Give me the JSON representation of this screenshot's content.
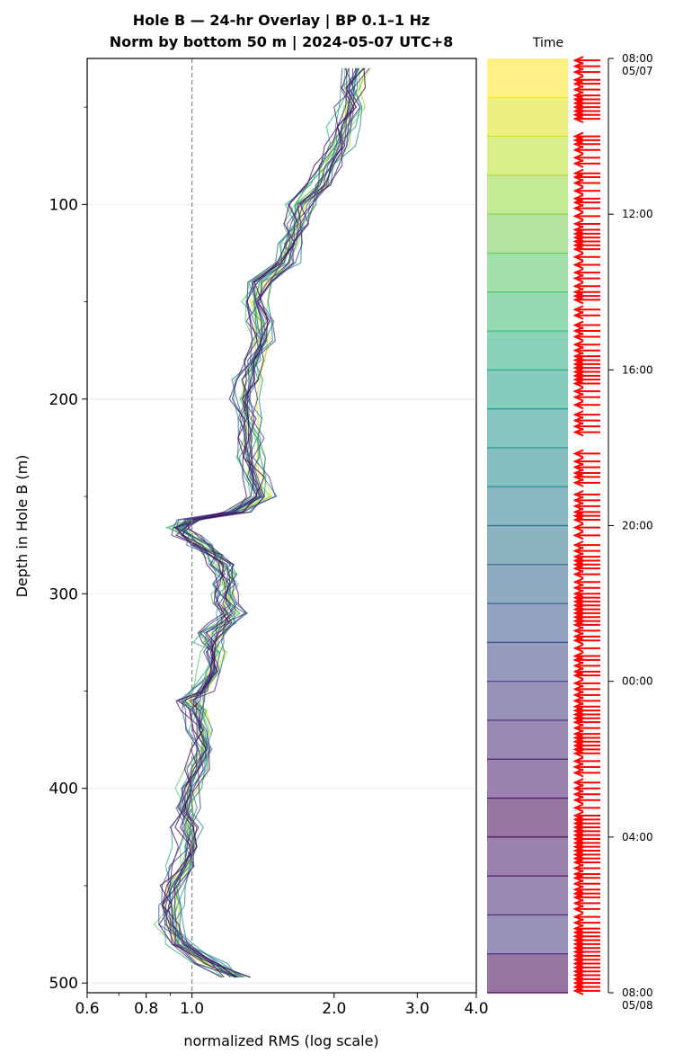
{
  "chart_data": {
    "type": "line",
    "title_line1": "Hole B — 24-hr Overlay  |  BP 0.1–1 Hz",
    "title_line2": "Norm by bottom 50 m  |  2024-05-07 UTC+8",
    "xlabel": "normalized RMS  (log scale)",
    "ylabel": "Depth in Hole B (m)",
    "x_scale": "log",
    "xlim": [
      0.6,
      4.0
    ],
    "ylim": [
      505,
      25
    ],
    "x_ticks": [
      {
        "v": 0.6,
        "label": "0.6"
      },
      {
        "v": 0.8,
        "label": "0.8"
      },
      {
        "v": 1.0,
        "label": "1.0"
      },
      {
        "v": 2.0,
        "label": "2.0"
      },
      {
        "v": 3.0,
        "label": "3.0"
      },
      {
        "v": 4.0,
        "label": "4.0"
      }
    ],
    "x_minor_ticks": [
      0.7,
      0.9
    ],
    "y_ticks": [
      {
        "v": 100,
        "label": "100"
      },
      {
        "v": 200,
        "label": "200"
      },
      {
        "v": 300,
        "label": "300"
      },
      {
        "v": 400,
        "label": "400"
      },
      {
        "v": 500,
        "label": "500"
      }
    ],
    "y_minor_ticks": [
      50,
      150,
      250,
      350,
      450
    ],
    "grid": "horizontal",
    "reference_line": {
      "x": 1.0,
      "style": "dashed",
      "color": "#888888"
    },
    "colormap": "viridis",
    "colorbar": {
      "label": "Time",
      "ticks": [
        {
          "hour": 0,
          "line1": "08:00",
          "line2": "05/07"
        },
        {
          "hour": 4,
          "line1": "12:00",
          "line2": ""
        },
        {
          "hour": 8,
          "line1": "16:00",
          "line2": ""
        },
        {
          "hour": 12,
          "line1": "20:00",
          "line2": ""
        },
        {
          "hour": 16,
          "line1": "00:00",
          "line2": ""
        },
        {
          "hour": 20,
          "line1": "04:00",
          "line2": ""
        },
        {
          "hour": 24,
          "line1": "08:00",
          "line2": "05/08"
        }
      ],
      "band_count": 24,
      "band_colors": [
        "#fde725",
        "#dde318",
        "#bade28",
        "#95d840",
        "#75d054",
        "#56c667",
        "#3dbc74",
        "#29af7f",
        "#20a386",
        "#1f968b",
        "#238a8d",
        "#287d8e",
        "#2d718e",
        "#33638d",
        "#39558c",
        "#3f4788",
        "#453781",
        "#482878",
        "#481a6c",
        "#440154",
        "#481a6c",
        "#482878",
        "#453781",
        "#440154"
      ],
      "event_times_hours": [
        0.05,
        0.2,
        0.35,
        0.55,
        0.65,
        0.8,
        0.95,
        1.05,
        1.15,
        1.25,
        1.35,
        1.45,
        1.55,
        2.0,
        2.1,
        2.2,
        2.35,
        2.55,
        2.7,
        2.95,
        3.05,
        3.2,
        3.4,
        3.6,
        3.7,
        3.85,
        4.05,
        4.25,
        4.4,
        4.5,
        4.6,
        4.7,
        4.8,
        4.9,
        5.1,
        5.3,
        5.5,
        5.65,
        5.85,
        6.0,
        6.1,
        6.2,
        6.45,
        6.6,
        6.85,
        7.0,
        7.15,
        7.35,
        7.5,
        7.65,
        7.75,
        7.85,
        7.95,
        8.05,
        8.15,
        8.25,
        8.35,
        8.55,
        8.7,
        8.9,
        9.15,
        9.3,
        9.45,
        9.6,
        10.15,
        10.35,
        10.5,
        10.65,
        10.75,
        10.9,
        11.2,
        11.35,
        11.5,
        11.65,
        11.75,
        11.85,
        12.05,
        12.25,
        12.5,
        12.65,
        12.8,
        12.9,
        13.0,
        13.1,
        13.25,
        13.45,
        13.6,
        13.75,
        13.85,
        13.95,
        14.05,
        14.15,
        14.25,
        14.35,
        14.45,
        14.55,
        14.7,
        14.85,
        14.95,
        15.15,
        15.35,
        15.45,
        15.6,
        15.75,
        15.85,
        16.05,
        16.2,
        16.35,
        16.5,
        16.65,
        16.75,
        16.85,
        16.95,
        17.05,
        17.2,
        17.35,
        17.45,
        17.55,
        17.65,
        17.75,
        17.85,
        18.05,
        18.2,
        18.35,
        18.6,
        18.75,
        18.9,
        19.05,
        19.25,
        19.45,
        19.55,
        19.65,
        19.75,
        19.85,
        19.95,
        20.05,
        20.15,
        20.25,
        20.35,
        20.45,
        20.55,
        20.65,
        20.8,
        20.95,
        21.05,
        21.2,
        21.35,
        21.45,
        21.55,
        21.7,
        21.85,
        22.05,
        22.2,
        22.35,
        22.45,
        22.55,
        22.65,
        22.75,
        22.85,
        22.95,
        23.05,
        23.15,
        23.25,
        23.35,
        23.45,
        23.55,
        23.65,
        23.75,
        23.85,
        23.95
      ],
      "event_color": "#ff0000"
    },
    "baseline_profile": {
      "depths": [
        30,
        40,
        50,
        60,
        70,
        80,
        90,
        100,
        110,
        120,
        130,
        140,
        150,
        160,
        170,
        180,
        190,
        200,
        210,
        220,
        230,
        240,
        250,
        258,
        262,
        266,
        270,
        275,
        280,
        285,
        290,
        295,
        300,
        305,
        310,
        315,
        320,
        325,
        330,
        340,
        350,
        355,
        360,
        370,
        380,
        390,
        400,
        410,
        420,
        430,
        440,
        450,
        460,
        470,
        480,
        490,
        497
      ],
      "values": [
        2.25,
        2.2,
        2.18,
        2.1,
        2.05,
        1.95,
        1.85,
        1.72,
        1.68,
        1.62,
        1.58,
        1.4,
        1.38,
        1.4,
        1.42,
        1.35,
        1.32,
        1.3,
        1.32,
        1.33,
        1.34,
        1.36,
        1.42,
        1.25,
        1.0,
        0.95,
        0.98,
        1.05,
        1.12,
        1.15,
        1.18,
        1.2,
        1.18,
        1.2,
        1.22,
        1.18,
        1.12,
        1.1,
        1.12,
        1.1,
        1.06,
        1.0,
        1.03,
        1.05,
        1.05,
        1.03,
        1.0,
        0.97,
        0.98,
        0.98,
        0.96,
        0.92,
        0.9,
        0.9,
        0.96,
        1.1,
        1.25
      ]
    },
    "series_count": 24
  }
}
